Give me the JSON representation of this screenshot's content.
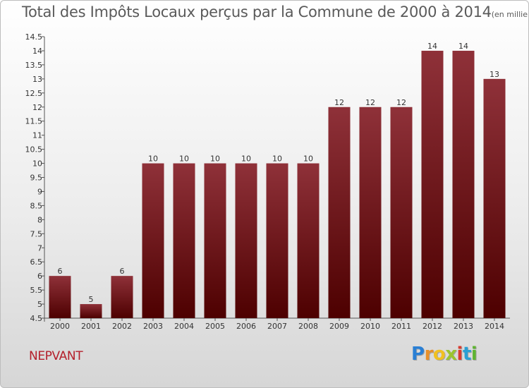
{
  "title": "Total des Impôts Locaux perçus par la Commune de 2000 à 2014",
  "subtitle": "(en milliers d'€)",
  "commune": "NEPVANT",
  "brand": [
    "P",
    "r",
    "o",
    "x",
    "i",
    "t",
    "i"
  ],
  "colors": {
    "bar_top": "#8f3139",
    "bar_bottom": "#4d0000",
    "axis": "#555555",
    "commune": "#b41f2b",
    "brand": [
      "#2a7fd4",
      "#e8902a",
      "#f0c020",
      "#9bc42f",
      "#d93b2f",
      "#2a9fd4",
      "#5fb432"
    ]
  },
  "chart_data": {
    "type": "bar",
    "title": "Total des Impôts Locaux perçus par la Commune de 2000 à 2014",
    "subtitle": "(en milliers d'€)",
    "xlabel": "",
    "ylabel": "",
    "categories": [
      "2000",
      "2001",
      "2002",
      "2003",
      "2004",
      "2005",
      "2006",
      "2007",
      "2008",
      "2009",
      "2010",
      "2011",
      "2012",
      "2013",
      "2014"
    ],
    "values": [
      6,
      5,
      6,
      10,
      10,
      10,
      10,
      10,
      10,
      12,
      12,
      12,
      14,
      14,
      13
    ],
    "ylim": [
      4.5,
      14.5
    ],
    "yticks": [
      "4.5",
      "5",
      "5.5",
      "6",
      "6.5",
      "7",
      "7.5",
      "8",
      "8.5",
      "9",
      "9.5",
      "10",
      "10.5",
      "11",
      "11.5",
      "12",
      "12.5",
      "13",
      "13.5",
      "14",
      "14.5"
    ],
    "grid": false,
    "legend": "none"
  }
}
